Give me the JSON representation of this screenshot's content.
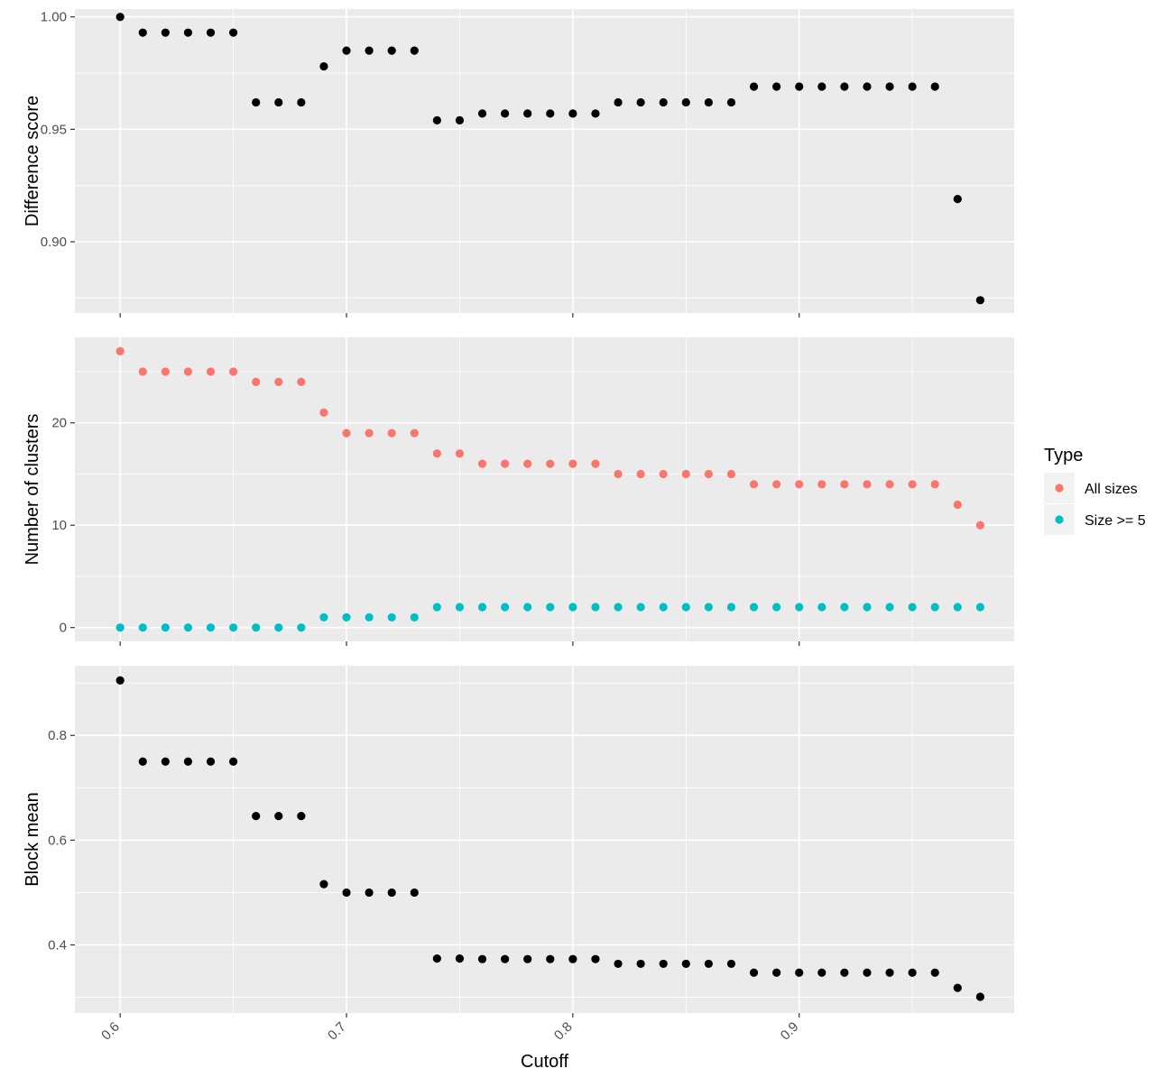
{
  "chart_data": {
    "type": "scatter",
    "xlabel": "Cutoff",
    "x_ticks": [
      "0.6",
      "0.7",
      "0.8",
      "0.9"
    ],
    "xlim": [
      0.58,
      0.995
    ],
    "x": [
      0.6,
      0.61,
      0.62,
      0.63,
      0.64,
      0.65,
      0.66,
      0.67,
      0.68,
      0.69,
      0.7,
      0.71,
      0.72,
      0.73,
      0.74,
      0.75,
      0.76,
      0.77,
      0.78,
      0.79,
      0.8,
      0.81,
      0.82,
      0.83,
      0.84,
      0.85,
      0.86,
      0.87,
      0.88,
      0.89,
      0.9,
      0.91,
      0.92,
      0.93,
      0.94,
      0.95,
      0.96,
      0.97,
      0.98
    ],
    "grid": true,
    "legend": {
      "title": "Type",
      "placement": "right",
      "entries": [
        {
          "label": "All sizes",
          "color": "#F8766D"
        },
        {
          "label": "Size >= 5",
          "color": "#00BFC4"
        }
      ]
    },
    "panels": [
      {
        "ylabel": "Difference score",
        "y_ticks": [
          "0.90",
          "0.95",
          "1.00"
        ],
        "y_tick_values": [
          0.9,
          0.95,
          1.0
        ],
        "ylim": [
          0.8683,
          1.0035
        ],
        "series": [
          {
            "color": "#000000",
            "values": [
              1.0,
              0.993,
              0.993,
              0.993,
              0.993,
              0.993,
              0.962,
              0.962,
              0.962,
              0.978,
              0.985,
              0.985,
              0.985,
              0.985,
              0.954,
              0.954,
              0.957,
              0.957,
              0.957,
              0.957,
              0.957,
              0.957,
              0.962,
              0.962,
              0.962,
              0.962,
              0.962,
              0.962,
              0.969,
              0.969,
              0.969,
              0.969,
              0.969,
              0.969,
              0.969,
              0.969,
              0.969,
              0.919,
              0.874
            ]
          }
        ]
      },
      {
        "ylabel": "Number of clusters",
        "y_ticks": [
          "0",
          "10",
          "20"
        ],
        "y_tick_values": [
          0,
          10,
          20
        ],
        "ylim": [
          -1.35,
          28.35
        ],
        "series": [
          {
            "name": "All sizes",
            "color": "#F8766D",
            "values": [
              27,
              25,
              25,
              25,
              25,
              25,
              24,
              24,
              24,
              21,
              19,
              19,
              19,
              19,
              17,
              17,
              16,
              16,
              16,
              16,
              16,
              16,
              15,
              15,
              15,
              15,
              15,
              15,
              14,
              14,
              14,
              14,
              14,
              14,
              14,
              14,
              14,
              12,
              10
            ]
          },
          {
            "name": "Size >= 5",
            "color": "#00BFC4",
            "values": [
              0,
              0,
              0,
              0,
              0,
              0,
              0,
              0,
              0,
              1,
              1,
              1,
              1,
              1,
              2,
              2,
              2,
              2,
              2,
              2,
              2,
              2,
              2,
              2,
              2,
              2,
              2,
              2,
              2,
              2,
              2,
              2,
              2,
              2,
              2,
              2,
              2,
              2,
              2
            ]
          }
        ]
      },
      {
        "ylabel": "Block mean",
        "y_ticks": [
          "0.4",
          "0.6",
          "0.8"
        ],
        "y_tick_values": [
          0.4,
          0.6,
          0.8
        ],
        "ylim": [
          0.27,
          0.933
        ],
        "series": [
          {
            "color": "#000000",
            "values": [
              0.905,
              0.75,
              0.75,
              0.75,
              0.75,
              0.75,
              0.646,
              0.646,
              0.646,
              0.516,
              0.5,
              0.5,
              0.5,
              0.5,
              0.374,
              0.374,
              0.373,
              0.373,
              0.373,
              0.373,
              0.373,
              0.373,
              0.364,
              0.364,
              0.364,
              0.364,
              0.364,
              0.364,
              0.347,
              0.347,
              0.347,
              0.347,
              0.347,
              0.347,
              0.347,
              0.347,
              0.347,
              0.318,
              0.301
            ]
          }
        ]
      }
    ]
  }
}
